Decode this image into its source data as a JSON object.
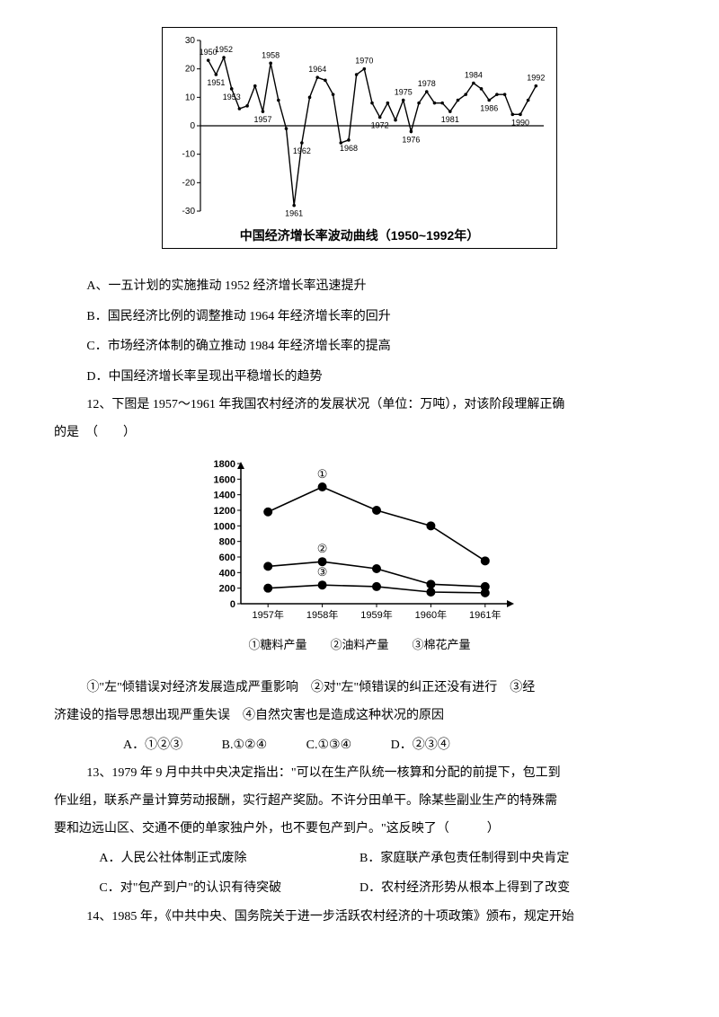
{
  "chart1": {
    "type": "line",
    "caption": "中国经济增长率波动曲线（1950~1992年）",
    "ylim": [
      -30,
      30
    ],
    "yticks": [
      -30,
      -20,
      -10,
      0,
      10,
      20,
      30
    ],
    "xlim": [
      1949,
      1993
    ],
    "baseline_color": "#000000",
    "border_color": "#000000",
    "line_color": "#000000",
    "point_labels": [
      {
        "year": 1950,
        "label": "1950",
        "pos": "above"
      },
      {
        "year": 1951,
        "label": "1951",
        "pos": "below"
      },
      {
        "year": 1952,
        "label": "1952",
        "pos": "above"
      },
      {
        "year": 1953,
        "label": "1953",
        "pos": "below"
      },
      {
        "year": 1957,
        "label": "1957",
        "pos": "below"
      },
      {
        "year": 1958,
        "label": "1958",
        "pos": "above"
      },
      {
        "year": 1961,
        "label": "1961",
        "pos": "below"
      },
      {
        "year": 1962,
        "label": "1962",
        "pos": "below"
      },
      {
        "year": 1964,
        "label": "1964",
        "pos": "above"
      },
      {
        "year": 1968,
        "label": "1968",
        "pos": "below"
      },
      {
        "year": 1970,
        "label": "1970",
        "pos": "above"
      },
      {
        "year": 1972,
        "label": "1972",
        "pos": "below"
      },
      {
        "year": 1975,
        "label": "1975",
        "pos": "above"
      },
      {
        "year": 1976,
        "label": "1976",
        "pos": "below"
      },
      {
        "year": 1978,
        "label": "1978",
        "pos": "above"
      },
      {
        "year": 1981,
        "label": "1981",
        "pos": "below"
      },
      {
        "year": 1984,
        "label": "1984",
        "pos": "above"
      },
      {
        "year": 1986,
        "label": "1986",
        "pos": "below"
      },
      {
        "year": 1990,
        "label": "1990",
        "pos": "below"
      },
      {
        "year": 1992,
        "label": "1992",
        "pos": "above"
      }
    ],
    "series": [
      {
        "year": 1950,
        "rate": 23
      },
      {
        "year": 1951,
        "rate": 18
      },
      {
        "year": 1952,
        "rate": 24
      },
      {
        "year": 1953,
        "rate": 13
      },
      {
        "year": 1954,
        "rate": 6
      },
      {
        "year": 1955,
        "rate": 7
      },
      {
        "year": 1956,
        "rate": 14
      },
      {
        "year": 1957,
        "rate": 5
      },
      {
        "year": 1958,
        "rate": 22
      },
      {
        "year": 1959,
        "rate": 9
      },
      {
        "year": 1960,
        "rate": -1
      },
      {
        "year": 1961,
        "rate": -28
      },
      {
        "year": 1962,
        "rate": -6
      },
      {
        "year": 1963,
        "rate": 10
      },
      {
        "year": 1964,
        "rate": 17
      },
      {
        "year": 1965,
        "rate": 16
      },
      {
        "year": 1966,
        "rate": 11
      },
      {
        "year": 1967,
        "rate": -6
      },
      {
        "year": 1968,
        "rate": -5
      },
      {
        "year": 1969,
        "rate": 18
      },
      {
        "year": 1970,
        "rate": 20
      },
      {
        "year": 1971,
        "rate": 8
      },
      {
        "year": 1972,
        "rate": 3
      },
      {
        "year": 1973,
        "rate": 8
      },
      {
        "year": 1974,
        "rate": 2
      },
      {
        "year": 1975,
        "rate": 9
      },
      {
        "year": 1976,
        "rate": -2
      },
      {
        "year": 1977,
        "rate": 8
      },
      {
        "year": 1978,
        "rate": 12
      },
      {
        "year": 1979,
        "rate": 8
      },
      {
        "year": 1980,
        "rate": 8
      },
      {
        "year": 1981,
        "rate": 5
      },
      {
        "year": 1982,
        "rate": 9
      },
      {
        "year": 1983,
        "rate": 11
      },
      {
        "year": 1984,
        "rate": 15
      },
      {
        "year": 1985,
        "rate": 13
      },
      {
        "year": 1986,
        "rate": 9
      },
      {
        "year": 1987,
        "rate": 11
      },
      {
        "year": 1988,
        "rate": 11
      },
      {
        "year": 1989,
        "rate": 4
      },
      {
        "year": 1990,
        "rate": 4
      },
      {
        "year": 1991,
        "rate": 9
      },
      {
        "year": 1992,
        "rate": 14
      }
    ]
  },
  "q11": {
    "opt_a": "A、一五计划的实施推动 1952 经济增长率迅速提升",
    "opt_b": "B．国民经济比例的调整推动 1964 年经济增长率的回升",
    "opt_c": "C．市场经济体制的确立推动 1984 年经济增长率的提高",
    "opt_d": "D．中国经济增长率呈现出平稳增长的趋势"
  },
  "q12": {
    "stem1": "12、下图是 1957～1961 年我国农村经济的发展状况（单位：万吨），对该阶段理解正确",
    "stem2": "的是　（　　）",
    "statements1": "①\"左\"倾错误对经济发展造成严重影响　②对\"左\"倾错误的纠正还没有进行　③经",
    "statements2": "济建设的指导思想出现严重失误　④自然灾害也是造成这种状况的原因",
    "choice_a": "A．①②③",
    "choice_b": "B.①②④",
    "choice_c": "C.①③④",
    "choice_d": "D．②③④"
  },
  "chart2": {
    "type": "line",
    "ylim": [
      0,
      1800
    ],
    "yticks": [
      0,
      200,
      400,
      600,
      800,
      1000,
      1200,
      1400,
      1600,
      1800
    ],
    "x_categories": [
      "1957年",
      "1958年",
      "1959年",
      "1960年",
      "1961年"
    ],
    "line_color": "#000000",
    "marker": "circle-filled",
    "marker_size": 5,
    "legend_text": "①糖料产量　　②油料产量　　③棉花产量",
    "series": {
      "sugar": {
        "label": "①",
        "values": [
          1180,
          1500,
          1200,
          1000,
          550
        ]
      },
      "oil": {
        "label": "②",
        "values": [
          480,
          540,
          450,
          250,
          220
        ]
      },
      "cotton": {
        "label": "③",
        "values": [
          200,
          240,
          220,
          150,
          140
        ]
      }
    }
  },
  "q13": {
    "line1": "13、1979 年 9 月中共中央决定指出：\"可以在生产队统一核算和分配的前提下，包工到",
    "line2": "作业组，联系产量计算劳动报酬，实行超产奖励。不许分田单干。除某些副业生产的特殊需",
    "line3": "要和边远山区、交通不便的单家独户外，也不要包产到户。\"这反映了（　　　）",
    "opt_a": "A．人民公社体制正式废除",
    "opt_b": "B．家庭联产承包责任制得到中央肯定",
    "opt_c": "C．对\"包产到户\"的认识有待突破",
    "opt_d": "D．农村经济形势从根本上得到了改变"
  },
  "q14": {
    "line1": "14、1985 年，《中共中央、国务院关于进一步活跃农村经济的十项政策》颁布，规定开始"
  }
}
